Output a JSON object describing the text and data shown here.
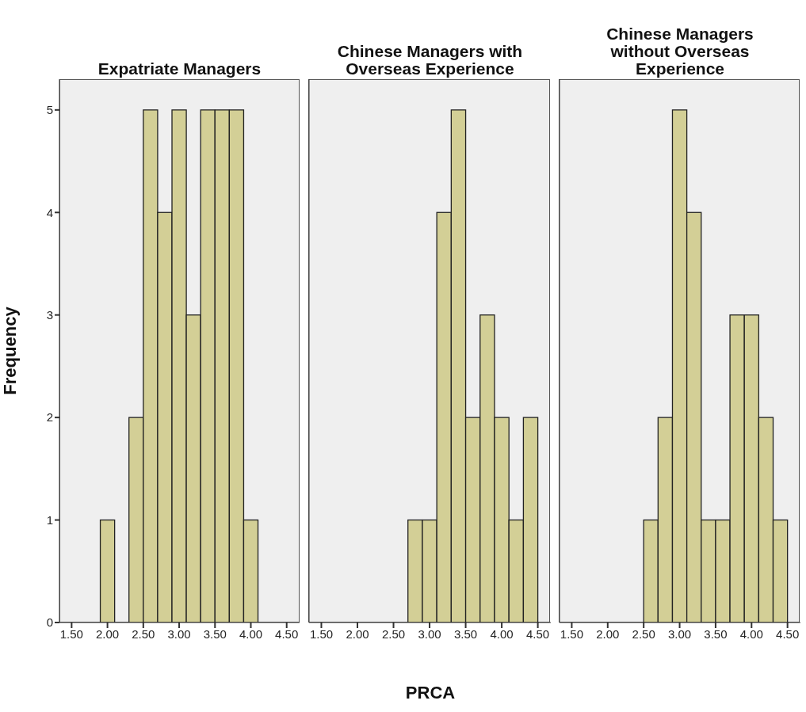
{
  "chart_data": [
    {
      "type": "histogram",
      "title": "Expatriate Managers",
      "ylabel": "Frequency",
      "bins": [
        1.9,
        2.1,
        2.3,
        2.5,
        2.7,
        2.9,
        3.1,
        3.3,
        3.5,
        3.7,
        3.9,
        4.1,
        4.3,
        4.5
      ],
      "values": [
        1,
        0,
        2,
        5,
        4,
        5,
        3,
        5,
        5,
        5,
        1,
        0,
        0
      ],
      "color": "#d3cf96",
      "xlim": [
        1.33,
        4.68
      ],
      "xticks": [
        {
          "value": 1.5,
          "label": "1.50"
        },
        {
          "value": 2,
          "label": "2.00"
        },
        {
          "value": 2.5,
          "label": "2.50"
        },
        {
          "value": 3,
          "label": "3.00"
        },
        {
          "value": 3.5,
          "label": "3.50"
        },
        {
          "value": 4,
          "label": "4.00"
        },
        {
          "value": 4.5,
          "label": "4.50"
        }
      ],
      "ylim": [
        0,
        5.3
      ],
      "yticks": [
        0,
        1,
        2,
        3,
        4,
        5
      ]
    },
    {
      "type": "histogram",
      "title": "Chinese Managers with Overseas Experience",
      "xlabel": "PRCA",
      "bins": [
        1.9,
        2.1,
        2.3,
        2.5,
        2.7,
        2.9,
        3.1,
        3.3,
        3.5,
        3.7,
        3.9,
        4.1,
        4.3,
        4.5
      ],
      "values": [
        0,
        0,
        0,
        0,
        1,
        1,
        4,
        5,
        2,
        3,
        2,
        1,
        2
      ],
      "color": "#d3cf96",
      "xlim": [
        1.33,
        4.68
      ],
      "xticks": [
        {
          "value": 1.5,
          "label": "1.50"
        },
        {
          "value": 2,
          "label": "2.00"
        },
        {
          "value": 2.5,
          "label": "2.50"
        },
        {
          "value": 3,
          "label": "3.00"
        },
        {
          "value": 3.5,
          "label": "3.50"
        },
        {
          "value": 4,
          "label": "4.00"
        },
        {
          "value": 4.5,
          "label": "4.50"
        }
      ],
      "ylim": [
        0,
        5.3
      ],
      "yticks": [
        0,
        1,
        2,
        3,
        4,
        5
      ],
      "tick_labels": "x"
    },
    {
      "type": "histogram",
      "title": "Chinese Managers without Overseas Experience",
      "bins": [
        1.9,
        2.1,
        2.3,
        2.5,
        2.7,
        2.9,
        3.1,
        3.3,
        3.5,
        3.7,
        3.9,
        4.1,
        4.3,
        4.5
      ],
      "values": [
        0,
        0,
        0,
        1,
        2,
        5,
        4,
        1,
        1,
        3,
        3,
        2,
        1
      ],
      "color": "#d3cf96",
      "xlim": [
        1.33,
        4.68
      ],
      "xticks": [
        {
          "value": 1.5,
          "label": "1.50"
        },
        {
          "value": 2,
          "label": "2.00"
        },
        {
          "value": 2.5,
          "label": "2.50"
        },
        {
          "value": 3,
          "label": "3.00"
        },
        {
          "value": 3.5,
          "label": "3.50"
        },
        {
          "value": 4,
          "label": "4.00"
        },
        {
          "value": 4.5,
          "label": "4.50"
        }
      ],
      "ylim": [
        0,
        5.3
      ],
      "yticks": [
        0,
        1,
        2,
        3,
        4,
        5
      ],
      "tick_labels": "x"
    }
  ]
}
